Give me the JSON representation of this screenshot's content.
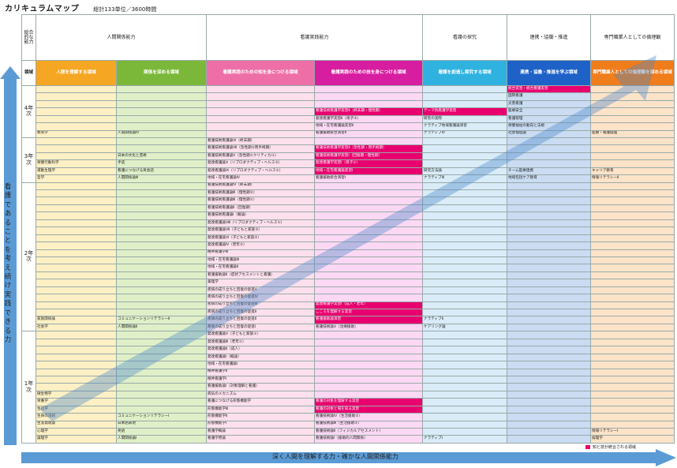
{
  "page_title": "カリキュラムマップ",
  "total_label": "総計133単位／3600時間",
  "corner_label": "総合的な能力",
  "hdr_corner": "領域",
  "top_headers": [
    "人間関係能力",
    "看護実践能力",
    "看護の探究",
    "連携・協働・推進",
    "専門職業人としての倫理観"
  ],
  "area_headers": [
    "人間を理解する領域",
    "関係を深める領域",
    "看護実践のための知を身につける領域",
    "看護実践のための技を身につける領域",
    "看護を創造し探究する領域",
    "連携・協働・推進を学ぶ領域",
    "専門職業人としての倫理観を探める領域"
  ],
  "years": [
    "4年次",
    "3年次",
    "2年次",
    "1年次"
  ],
  "vertical_label": "看護であることを考え続け実践できる力",
  "bottom_label": "深く人間を理解する力・確かな人間関係能力",
  "legend_label": "知と技が統合される領域",
  "colors": {
    "highlight": "#e8006e",
    "hdr0": "#f5a623",
    "hdr1": "#7bb83a",
    "hdr2": "#ee6fa7",
    "hdr3": "#d81ea0",
    "hdr4": "#2fb2e0",
    "hdr5": "#1e62c8",
    "hdr6": "#f07d1b"
  },
  "rows": [
    {
      "cells": [
        "",
        "",
        "",
        "",
        "",
        "統合実習・統合看護実習",
        ""
      ],
      "hl": [
        5
      ]
    },
    {
      "cells": [
        "",
        "",
        "",
        "",
        "",
        "国際看護",
        ""
      ]
    },
    {
      "cells": [
        "",
        "",
        "",
        "",
        "",
        "災害看護",
        ""
      ]
    },
    {
      "cells": [
        "",
        "",
        "",
        "看護技術看護学実習Ⅱ（終末期・慢性期）",
        "テーマ別看護学実習",
        "医療安全",
        ""
      ],
      "hl": [
        3,
        4
      ]
    },
    {
      "cells": [
        "",
        "",
        "",
        "発達看護学実習Ⅱ（母子②）",
        "研究の実際",
        "看護管理",
        ""
      ]
    },
    {
      "cells": [
        "",
        "",
        "",
        "地域・在宅看護論実習Ⅱ",
        "ナラティブ地域看護論演習",
        "保健福祉の動向と法規",
        ""
      ]
    },
    {
      "cells": [
        "教育学",
        "人間関係論Ⅳ",
        "",
        "看護援助統合演習Ⅱ",
        "ナラティブⅣ",
        "社会福祉論",
        "医療・看護倫理"
      ]
    },
    {
      "cells": [
        "",
        "",
        "看護技術看護論Ⅵ（終末期）",
        "",
        "",
        "",
        ""
      ]
    },
    {
      "cells": [
        "",
        "",
        "看護技術看護論Ⅶ（急性期②周手術期）",
        "看護技術看護学実習Ⅱ（急性期・周手術期）",
        "",
        "",
        ""
      ],
      "hl": [
        3
      ]
    },
    {
      "cells": [
        "",
        "日本の文化と芸術",
        "看護技術看護論Ⅴ（急性期①クリティカル）",
        "看護技術看護学実習Ⅰ（回復期・慢性期）",
        "",
        "",
        ""
      ],
      "hl": [
        3
      ]
    },
    {
      "cells": [
        "保健行動科学",
        "手話",
        "発達看護論Ⅹ（リプロダクティブ・ヘルス②）",
        "発達看護学実習Ⅰ（母子①）",
        "",
        "",
        ""
      ],
      "hl": [
        3
      ]
    },
    {
      "cells": [
        "運動生理学",
        "看護につなげる英会話",
        "発達看護論Ⅸ（リプロダクティブ・ヘルス①）",
        "地域・在宅看護論実習Ⅰ",
        "研究方法論",
        "チーム医療連携",
        "キャリア教育"
      ],
      "hl": [
        3
      ]
    },
    {
      "cells": [
        "哲学",
        "人間関係論Ⅲ",
        "地域・在宅看護論Ⅳ",
        "看護援助統合演習Ⅰ",
        "ナラティブⅢ",
        "地域包括ケア教育",
        "情報リテラシーⅡ"
      ]
    },
    {
      "cells": [
        "",
        "",
        "看護技術看護論Ⅳ（終末期）",
        "",
        "",
        "",
        ""
      ]
    },
    {
      "cells": [
        "",
        "",
        "看護技術看護論Ⅲ（慢性期②）",
        "",
        "",
        "",
        ""
      ]
    },
    {
      "cells": [
        "",
        "",
        "看護技術看護論Ⅲ（慢性期①）",
        "",
        "",
        "",
        ""
      ]
    },
    {
      "cells": [
        "",
        "",
        "看護技術看護論Ⅱ（回復期）",
        "",
        "",
        "",
        ""
      ]
    },
    {
      "cells": [
        "",
        "",
        "看護技術看護論Ⅰ（概論）",
        "",
        "",
        "",
        ""
      ]
    },
    {
      "cells": [
        "",
        "",
        "発達看護論Ⅷ（リプロダクティブ・ヘルス①）",
        "",
        "",
        "",
        ""
      ]
    },
    {
      "cells": [
        "",
        "",
        "発達看護論Ⅶ（子どもと家族③）",
        "",
        "",
        "",
        ""
      ]
    },
    {
      "cells": [
        "",
        "",
        "発達看護論Ⅵ（子どもと家族②）",
        "",
        "",
        "",
        ""
      ]
    },
    {
      "cells": [
        "",
        "",
        "発達看護論Ⅳ（老年②）",
        "",
        "",
        "",
        ""
      ]
    },
    {
      "cells": [
        "",
        "",
        "精神看護学Ⅲ",
        "",
        "",
        "",
        ""
      ]
    },
    {
      "cells": [
        "",
        "",
        "地域・在宅看護論Ⅲ",
        "",
        "",
        "",
        ""
      ]
    },
    {
      "cells": [
        "",
        "",
        "地域・在宅看護論Ⅱ",
        "",
        "",
        "",
        ""
      ]
    },
    {
      "cells": [
        "",
        "",
        "看護援助論Ⅱ（症状アセスメントと看護）",
        "",
        "",
        "",
        ""
      ]
    },
    {
      "cells": [
        "",
        "",
        "薬理学",
        "",
        "",
        "",
        ""
      ]
    },
    {
      "cells": [
        "",
        "",
        "疾病の成り立ちと回復の促進Ⅴ",
        "",
        "",
        "",
        ""
      ]
    },
    {
      "cells": [
        "",
        "",
        "疾病の成り立ちと回復の促進Ⅳ",
        "",
        "",
        "",
        ""
      ]
    },
    {
      "cells": [
        "",
        "",
        "疾病の成り立ちと回復の促進Ⅲ",
        "発達看護学実習Ⅰ（成人・老年）",
        "",
        "",
        ""
      ],
      "hl": [
        3
      ]
    },
    {
      "cells": [
        "",
        "",
        "疾病の成り立ちと回復の促進Ⅱ",
        "こころを理解する実習",
        "",
        "",
        ""
      ],
      "hl": [
        3
      ]
    },
    {
      "cells": [
        "家族関係論",
        "コミュニケーションリテラシーⅡ",
        "疾病の成り立ちと回復の促進Ⅱ",
        "看護援助論演習",
        "ナラティブⅡ",
        "",
        ""
      ],
      "hl": [
        3
      ]
    },
    {
      "cells": [
        "社会学",
        "人間関係論Ⅱ",
        "疾病の成り立ちと回復の促進Ⅰ",
        "看護技術論Ⅴ（治療援助）",
        "ケアリング論",
        "",
        ""
      ]
    },
    {
      "cells": [
        "",
        "",
        "発達看護論Ⅴ（子どもと家族①）",
        "",
        "",
        "",
        ""
      ]
    },
    {
      "cells": [
        "",
        "",
        "発達看護論Ⅲ（老年①）",
        "",
        "",
        "",
        ""
      ]
    },
    {
      "cells": [
        "",
        "",
        "発達看護論Ⅱ（成人）",
        "",
        "",
        "",
        ""
      ]
    },
    {
      "cells": [
        "",
        "",
        "発達看護論Ⅰ（概論）",
        "",
        "",
        "",
        ""
      ]
    },
    {
      "cells": [
        "",
        "",
        "地域・在宅看護論Ⅰ",
        "",
        "",
        "",
        ""
      ]
    },
    {
      "cells": [
        "",
        "",
        "精神看護学Ⅱ",
        "",
        "",
        "",
        ""
      ]
    },
    {
      "cells": [
        "",
        "",
        "精神看護学Ⅰ",
        "",
        "",
        "",
        ""
      ]
    },
    {
      "cells": [
        "",
        "",
        "看護援助論Ⅰ（対象理解と看護）",
        "",
        "",
        "",
        ""
      ]
    },
    {
      "cells": [
        "微生物学",
        "",
        "病気のメカニズム",
        "",
        "",
        "",
        ""
      ]
    },
    {
      "cells": [
        "栄養学",
        "",
        "看護につなげる形態機能学",
        "看護の対象を理解する実習",
        "",
        "",
        ""
      ],
      "hl": [
        3
      ]
    },
    {
      "cells": [
        "生化学",
        "",
        "形態機能学Ⅲ",
        "看護の対象と場を知る実習",
        "",
        "",
        ""
      ],
      "hl": [
        3
      ]
    },
    {
      "cells": [
        "生命の法則",
        "コミュニケーションリテラシーⅠ",
        "形態機能学Ⅱ",
        "看護技術論Ⅳ（生活援助②）",
        "",
        "",
        ""
      ]
    },
    {
      "cells": [
        "生涯発達論",
        "日本語表現",
        "形態機能学Ⅰ",
        "看護技術論Ⅲ（生活援助①）",
        "",
        "",
        ""
      ]
    },
    {
      "cells": [
        "心理学",
        "英語",
        "看護学概論",
        "看護技術論Ⅱ（フィジカルアセスメント）",
        "",
        "",
        "情報リテラシーⅠ"
      ]
    },
    {
      "cells": [
        "論理学",
        "人間関係論Ⅰ",
        "看護学原論",
        "看護技術論Ⅰ（援助的人間関係）",
        "ナラティブⅠ",
        "",
        "倫理学"
      ]
    }
  ]
}
